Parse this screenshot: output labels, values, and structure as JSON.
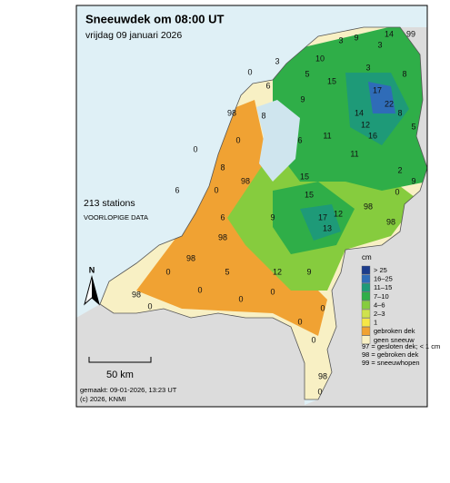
{
  "header": {
    "title": "Sneeuwdek om 08:00 UT",
    "subtitle": "vrijdag 09 januari 2026"
  },
  "info": {
    "stations": "213 stations",
    "status": "VOORLOPIGE DATA"
  },
  "legend": {
    "unit": "cm",
    "items": [
      {
        "label": "> 25",
        "color": "#1c3c8c"
      },
      {
        "label": "16–25",
        "color": "#2f6cb8"
      },
      {
        "label": "11–15",
        "color": "#1e9a78"
      },
      {
        "label": "7–10",
        "color": "#2fae48"
      },
      {
        "label": "4–6",
        "color": "#86cc3e"
      },
      {
        "label": "2–3",
        "color": "#cfe24c"
      },
      {
        "label": "1",
        "color": "#f6e646"
      },
      {
        "label": "gebroken dek",
        "color": "#f0a233"
      },
      {
        "label": "geen sneeuw",
        "color": "#f8f0c4"
      }
    ],
    "notes": [
      "97 = gesloten dek; < 1 cm",
      "98 = gebroken dek",
      "99 = sneeuwhopen"
    ]
  },
  "scale": {
    "label": "50 km"
  },
  "north": "N",
  "footer": {
    "made": "gemaakt: 09-01-2026, 13:23 UT",
    "copyright": "(c) 2026, KNMI"
  },
  "stations": [
    9,
    14,
    99,
    3,
    3,
    10,
    5,
    3,
    0,
    6,
    9,
    15,
    3,
    8,
    17,
    22,
    14,
    12,
    8,
    5,
    16,
    11,
    6,
    8,
    98,
    0,
    8,
    0,
    98,
    15,
    15,
    11,
    2,
    0,
    9,
    17,
    13,
    12,
    98,
    98,
    9,
    6,
    98,
    98,
    0,
    98,
    0,
    0,
    0,
    12,
    0,
    9,
    0,
    0,
    0,
    98,
    0,
    6,
    0,
    5
  ]
}
